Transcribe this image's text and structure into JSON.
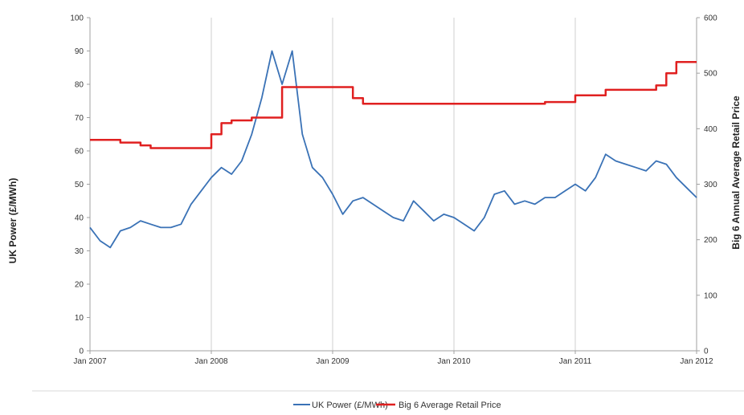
{
  "chart_data": {
    "type": "line",
    "title": "",
    "x_ticks": [
      "Jan 2007",
      "Jan 2008",
      "Jan 2009",
      "Jan 2010",
      "Jan 2011",
      "Jan 2012"
    ],
    "xlim": [
      "2007-01",
      "2012-01"
    ],
    "y_left": {
      "label": "UK Power (£/MWh)",
      "lim": [
        0,
        100
      ],
      "ticks": [
        "0",
        "10",
        "20",
        "30",
        "40",
        "50",
        "60",
        "70",
        "80",
        "90",
        "100"
      ]
    },
    "y_right": {
      "label": "Big 6 Annual Average Retail Price",
      "lim": [
        0,
        600
      ],
      "ticks": [
        "0",
        "100",
        "200",
        "300",
        "400",
        "500",
        "600"
      ]
    },
    "grid": "vertical at x ticks",
    "legend_position": "bottom-center",
    "series": [
      {
        "name": "UK Power (£/MWh)",
        "axis": "left",
        "color": "#3a72b6",
        "style": "line",
        "x": [
          "2007-01",
          "2007-02",
          "2007-03",
          "2007-04",
          "2007-05",
          "2007-06",
          "2007-07",
          "2007-08",
          "2007-09",
          "2007-10",
          "2007-11",
          "2007-12",
          "2008-01",
          "2008-02",
          "2008-03",
          "2008-04",
          "2008-05",
          "2008-06",
          "2008-07",
          "2008-08",
          "2008-09",
          "2008-10",
          "2008-11",
          "2008-12",
          "2009-01",
          "2009-02",
          "2009-03",
          "2009-04",
          "2009-05",
          "2009-06",
          "2009-07",
          "2009-08",
          "2009-09",
          "2009-10",
          "2009-11",
          "2009-12",
          "2010-01",
          "2010-02",
          "2010-03",
          "2010-04",
          "2010-05",
          "2010-06",
          "2010-07",
          "2010-08",
          "2010-09",
          "2010-10",
          "2010-11",
          "2010-12",
          "2011-01",
          "2011-02",
          "2011-03",
          "2011-04",
          "2011-05",
          "2011-06",
          "2011-07",
          "2011-08",
          "2011-09",
          "2011-10",
          "2011-11",
          "2011-12",
          "2012-01"
        ],
        "values": [
          37,
          33,
          31,
          36,
          37,
          39,
          38,
          37,
          37,
          38,
          44,
          48,
          52,
          55,
          53,
          57,
          65,
          76,
          90,
          80,
          90,
          65,
          55,
          52,
          47,
          41,
          45,
          46,
          44,
          42,
          40,
          39,
          45,
          42,
          39,
          41,
          40,
          38,
          36,
          40,
          47,
          48,
          44,
          45,
          44,
          46,
          46,
          48,
          50,
          48,
          52,
          59,
          57,
          56,
          55,
          54,
          57,
          56,
          52,
          49,
          46
        ]
      },
      {
        "name": "Big 6 Average Retail Price",
        "axis": "right",
        "color": "#e02020",
        "style": "step",
        "x": [
          "2007-01",
          "2007-04",
          "2007-06",
          "2007-07",
          "2008-01",
          "2008-02",
          "2008-03",
          "2008-05",
          "2008-08",
          "2009-03",
          "2009-04",
          "2010-10",
          "2011-01",
          "2011-04",
          "2011-09",
          "2011-10",
          "2011-11",
          "2012-01"
        ],
        "values": [
          380,
          375,
          370,
          365,
          390,
          410,
          415,
          420,
          475,
          455,
          445,
          448,
          460,
          470,
          478,
          500,
          520,
          520
        ]
      }
    ]
  }
}
